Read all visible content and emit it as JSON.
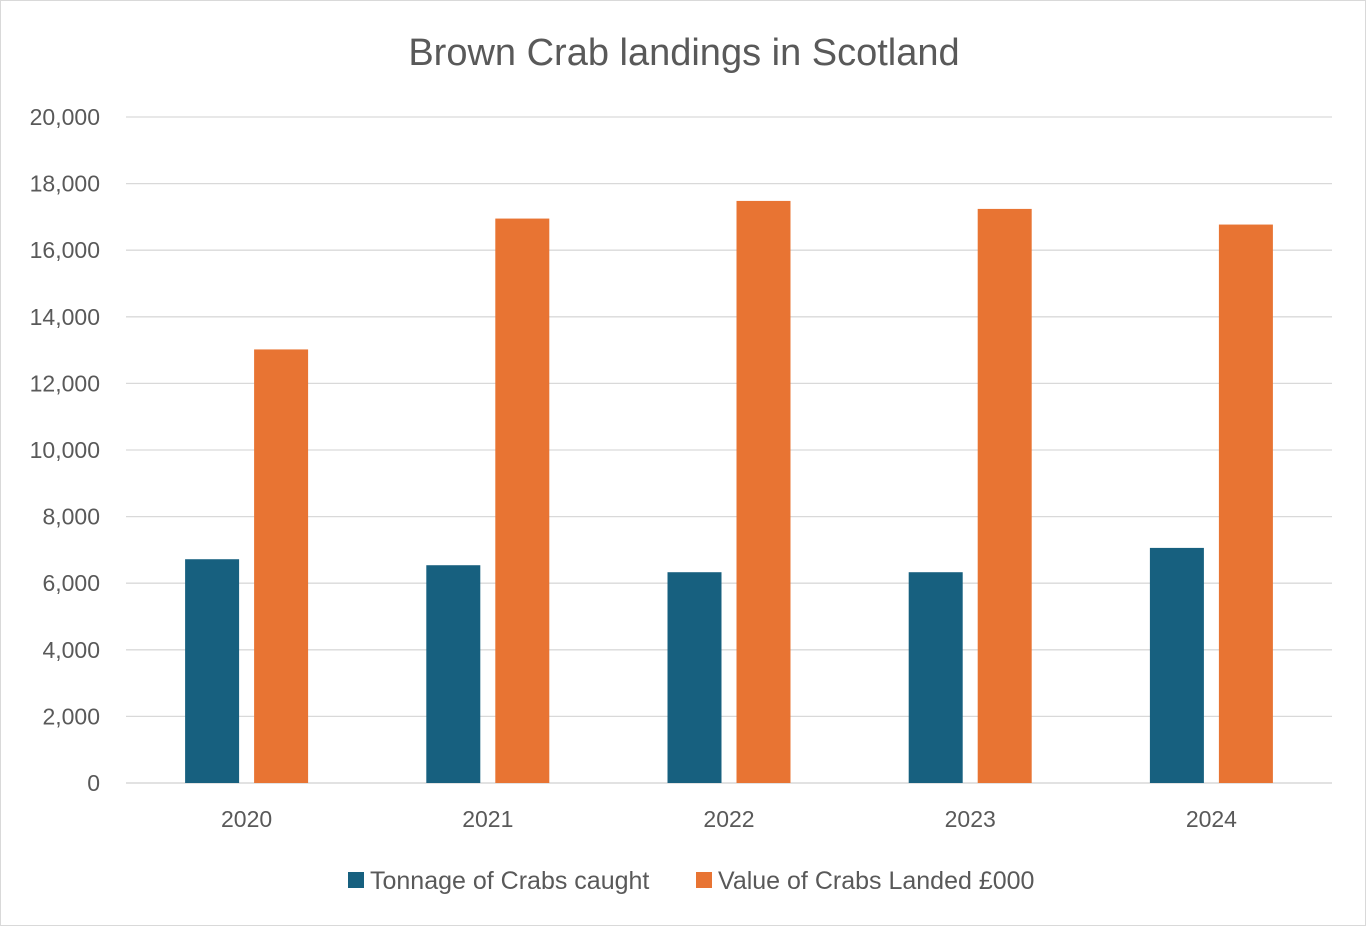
{
  "chart_data": {
    "type": "bar",
    "title": "Brown Crab landings in Scotland",
    "xlabel": "",
    "ylabel": "",
    "categories": [
      "2020",
      "2021",
      "2022",
      "2023",
      "2024"
    ],
    "series": [
      {
        "name": "Tonnage of Crabs caught",
        "color": "#17607f",
        "values": [
          6720,
          6540,
          6330,
          6330,
          7060
        ]
      },
      {
        "name": "Value of Crabs Landed £000",
        "color": "#e87433",
        "values": [
          13020,
          16950,
          17480,
          17240,
          16770
        ]
      }
    ],
    "ylim": [
      0,
      20000
    ],
    "yticks": [
      "0",
      "2,000",
      "4,000",
      "6,000",
      "8,000",
      "10,000",
      "12,000",
      "14,000",
      "16,000",
      "18,000",
      "20,000"
    ],
    "grid": true,
    "legend_position": "bottom"
  }
}
